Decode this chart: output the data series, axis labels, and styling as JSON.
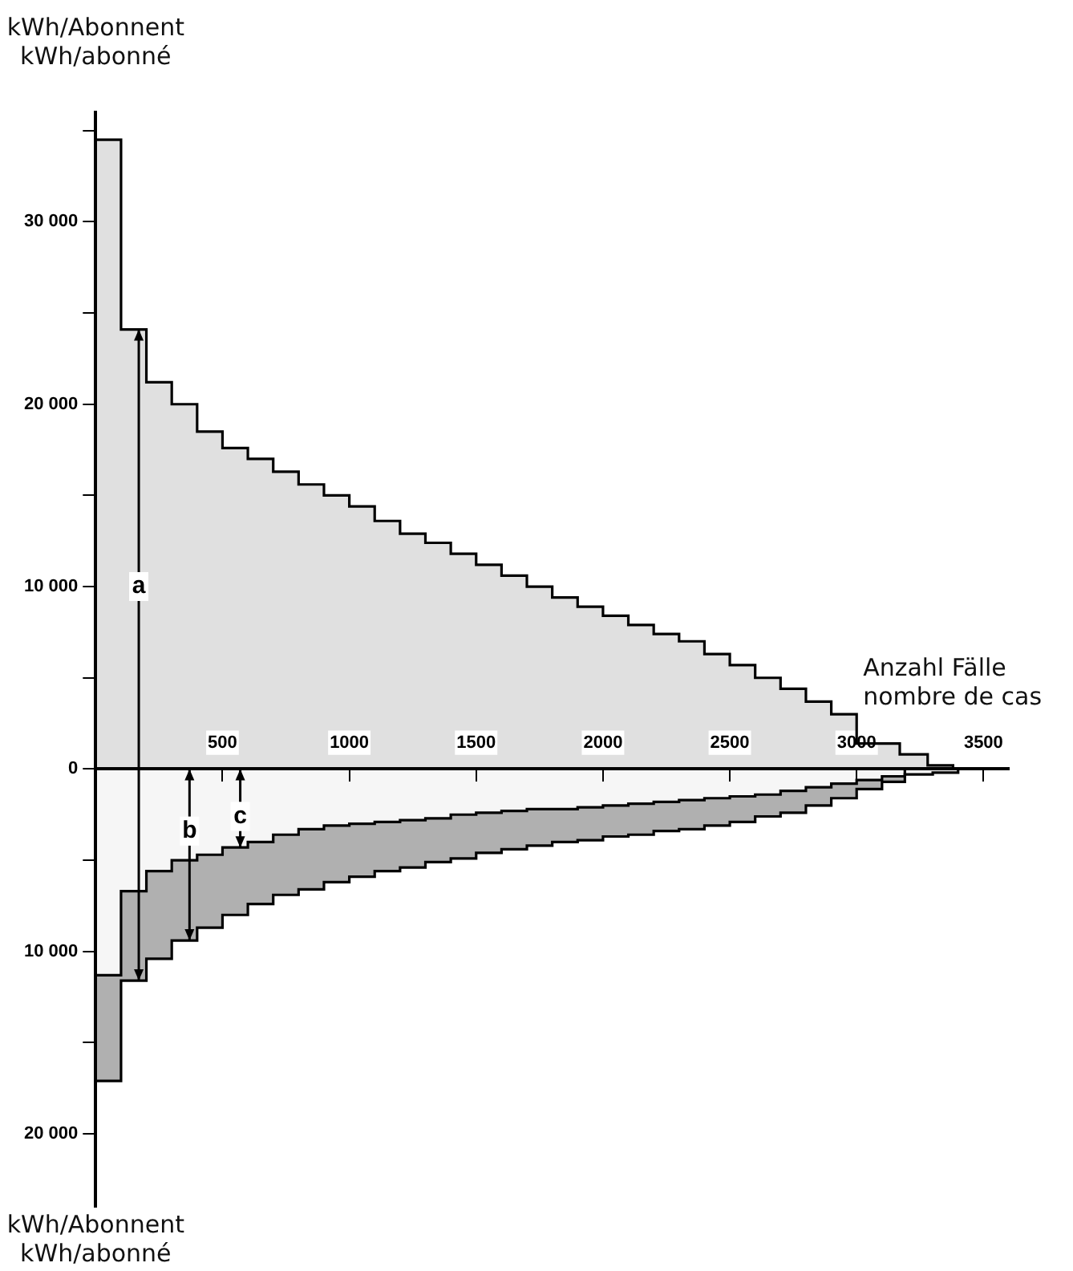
{
  "chart_data": {
    "type": "step",
    "ylabel": "kWh/Abonnent\nkWh/abonné",
    "xlabel": "Anzahl Fälle\nnombre de cas",
    "xlim": [
      0,
      3600
    ],
    "xticks": [
      500,
      1000,
      1500,
      2000,
      2500,
      3000,
      3500
    ],
    "ylim": [
      -24000,
      36000
    ],
    "yticks": [
      {
        "value": 35000,
        "label": null
      },
      {
        "value": 30000,
        "label": "30 000"
      },
      {
        "value": 25000,
        "label": null
      },
      {
        "value": 20000,
        "label": "20 000"
      },
      {
        "value": 15000,
        "label": null
      },
      {
        "value": 10000,
        "label": "10 000"
      },
      {
        "value": 5000,
        "label": null
      },
      0,
      {
        "value": -5000,
        "label": null
      },
      {
        "value": -10000,
        "label": "10 000"
      },
      {
        "value": -15000,
        "label": null
      },
      {
        "value": -20000,
        "label": "20 000"
      }
    ],
    "series": [
      {
        "color": "#000000",
        "x": [
          0,
          100,
          200,
          300,
          400,
          500,
          600,
          700,
          800,
          900,
          1000,
          1100,
          1200,
          1300,
          1400,
          1500,
          1600,
          1700,
          1800,
          1900,
          2000,
          2100,
          2200,
          2300,
          2400,
          2500,
          2600,
          2700,
          2800,
          2900,
          3000,
          3170,
          3280,
          3380
        ],
        "values": [
          34500,
          24100,
          21200,
          20000,
          18500,
          17600,
          17000,
          16300,
          15600,
          15000,
          14400,
          13600,
          12900,
          12400,
          11800,
          11200,
          10600,
          10000,
          9400,
          8900,
          8400,
          7900,
          7400,
          7000,
          6300,
          5700,
          5000,
          4400,
          3700,
          3000,
          1400,
          800,
          200,
          0
        ]
      },
      {
        "color": "#000000",
        "x": [
          0,
          100,
          200,
          300,
          400,
          500,
          600,
          700,
          800,
          900,
          1000,
          1100,
          1200,
          1300,
          1400,
          1500,
          1600,
          1700,
          1800,
          1900,
          2000,
          2100,
          2200,
          2300,
          2400,
          2500,
          2600,
          2700,
          2800,
          2900,
          3000,
          3100,
          3190,
          3300,
          3400
        ],
        "values": [
          -11300,
          -6700,
          -5600,
          -5000,
          -4700,
          -4300,
          -4000,
          -3600,
          -3300,
          -3100,
          -3000,
          -2900,
          -2800,
          -2700,
          -2500,
          -2400,
          -2300,
          -2200,
          -2200,
          -2100,
          -2000,
          -1900,
          -1800,
          -1700,
          -1600,
          -1500,
          -1400,
          -1200,
          -1000,
          -800,
          -600,
          -400,
          -300,
          -200,
          0
        ]
      },
      {
        "color": "#000000",
        "x": [
          0,
          100,
          200,
          300,
          400,
          500,
          600,
          700,
          800,
          900,
          1000,
          1100,
          1200,
          1300,
          1400,
          1500,
          1600,
          1700,
          1800,
          1900,
          2000,
          2100,
          2200,
          2300,
          2400,
          2500,
          2600,
          2700,
          2800,
          2900,
          3000,
          3100,
          3190
        ],
        "values": [
          -17100,
          -11600,
          -10400,
          -9400,
          -8700,
          -8000,
          -7400,
          -6900,
          -6600,
          -6200,
          -5900,
          -5600,
          -5400,
          -5100,
          -4900,
          -4600,
          -4400,
          -4200,
          -4000,
          -3900,
          -3700,
          -3600,
          -3400,
          -3300,
          -3100,
          -2900,
          -2600,
          -2400,
          -2000,
          -1600,
          -1100,
          -700,
          0
        ]
      }
    ],
    "annotations": [
      {
        "text": "a",
        "x": 170,
        "y": 10000
      },
      {
        "text": "b",
        "x": 370,
        "y": -3400
      },
      {
        "text": "c",
        "x": 570,
        "y": -2600
      }
    ]
  }
}
